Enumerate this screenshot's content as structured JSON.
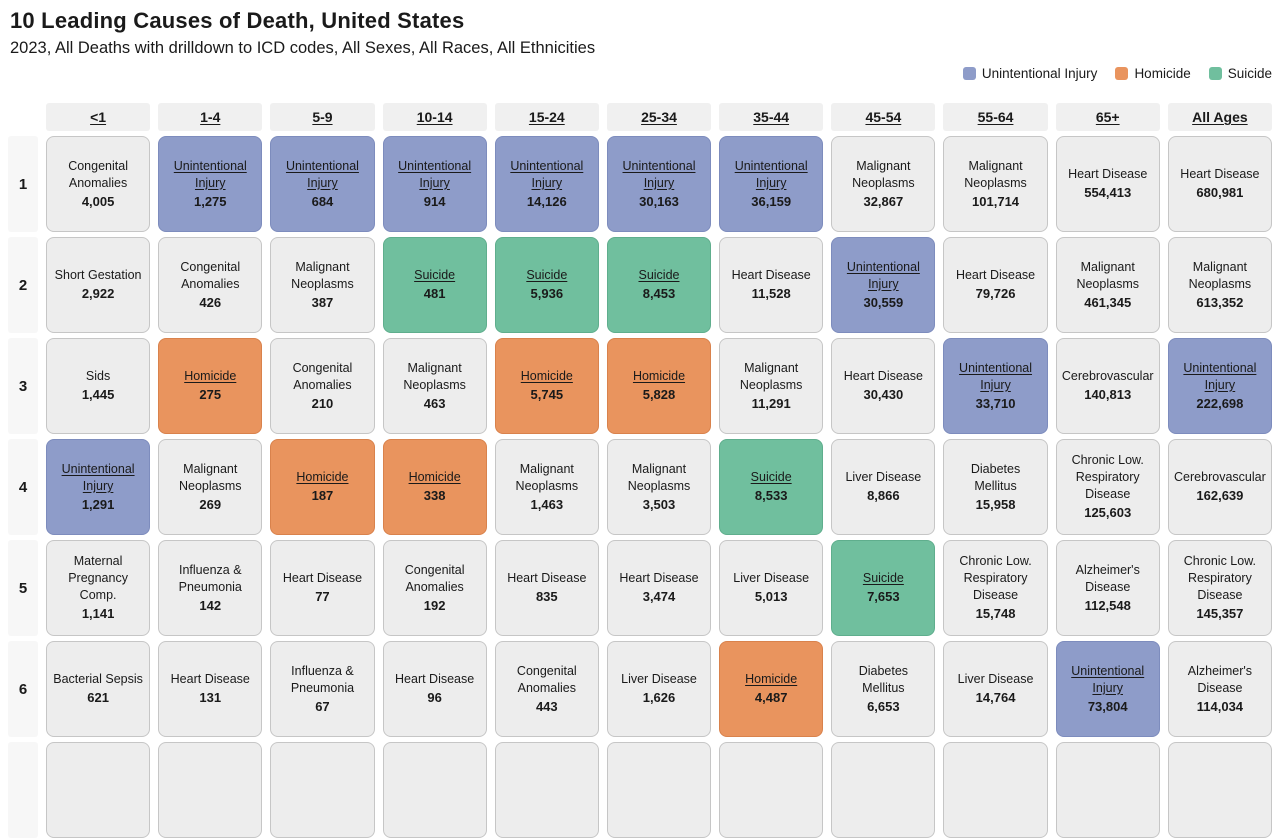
{
  "header": {
    "title": "10 Leading Causes of Death, United States",
    "subtitle": "2023, All Deaths with drilldown to ICD codes, All Sexes, All Races, All Ethnicities"
  },
  "legend": {
    "items": [
      {
        "label": "Unintentional Injury",
        "color": "#8e9cc9"
      },
      {
        "label": "Homicide",
        "color": "#e9945e"
      },
      {
        "label": "Suicide",
        "color": "#70bf9e"
      }
    ]
  },
  "chart_data": {
    "type": "table",
    "title": "10 Leading Causes of Death, United States",
    "subtitle": "2023, All Deaths with drilldown to ICD codes, All Sexes, All Races, All Ethnicities",
    "legend_position": "top-right",
    "category_colors": {
      "unintentional-injury": "#8e9cc9",
      "homicide": "#e9945e",
      "suicide": "#70bf9e",
      "none": "#ededed"
    },
    "columns": [
      "<1",
      "1-4",
      "5-9",
      "10-14",
      "15-24",
      "25-34",
      "35-44",
      "45-54",
      "55-64",
      "65+",
      "All Ages"
    ],
    "ranks": [
      "1",
      "2",
      "3",
      "4",
      "5",
      "6"
    ],
    "partial_row_visible": true,
    "rows": [
      {
        "rank": "1",
        "cells": [
          {
            "cause": "Congenital Anomalies",
            "deaths": "4,005",
            "category": "none"
          },
          {
            "cause": "Unintentional Injury",
            "deaths": "1,275",
            "category": "unintentional-injury"
          },
          {
            "cause": "Unintentional Injury",
            "deaths": "684",
            "category": "unintentional-injury"
          },
          {
            "cause": "Unintentional Injury",
            "deaths": "914",
            "category": "unintentional-injury"
          },
          {
            "cause": "Unintentional Injury",
            "deaths": "14,126",
            "category": "unintentional-injury"
          },
          {
            "cause": "Unintentional Injury",
            "deaths": "30,163",
            "category": "unintentional-injury"
          },
          {
            "cause": "Unintentional Injury",
            "deaths": "36,159",
            "category": "unintentional-injury"
          },
          {
            "cause": "Malignant Neoplasms",
            "deaths": "32,867",
            "category": "none"
          },
          {
            "cause": "Malignant Neoplasms",
            "deaths": "101,714",
            "category": "none"
          },
          {
            "cause": "Heart Disease",
            "deaths": "554,413",
            "category": "none"
          },
          {
            "cause": "Heart Disease",
            "deaths": "680,981",
            "category": "none"
          }
        ]
      },
      {
        "rank": "2",
        "cells": [
          {
            "cause": "Short Gestation",
            "deaths": "2,922",
            "category": "none"
          },
          {
            "cause": "Congenital Anomalies",
            "deaths": "426",
            "category": "none"
          },
          {
            "cause": "Malignant Neoplasms",
            "deaths": "387",
            "category": "none"
          },
          {
            "cause": "Suicide",
            "deaths": "481",
            "category": "suicide"
          },
          {
            "cause": "Suicide",
            "deaths": "5,936",
            "category": "suicide"
          },
          {
            "cause": "Suicide",
            "deaths": "8,453",
            "category": "suicide"
          },
          {
            "cause": "Heart Disease",
            "deaths": "11,528",
            "category": "none"
          },
          {
            "cause": "Unintentional Injury",
            "deaths": "30,559",
            "category": "unintentional-injury"
          },
          {
            "cause": "Heart Disease",
            "deaths": "79,726",
            "category": "none"
          },
          {
            "cause": "Malignant Neoplasms",
            "deaths": "461,345",
            "category": "none"
          },
          {
            "cause": "Malignant Neoplasms",
            "deaths": "613,352",
            "category": "none"
          }
        ]
      },
      {
        "rank": "3",
        "cells": [
          {
            "cause": "Sids",
            "deaths": "1,445",
            "category": "none"
          },
          {
            "cause": "Homicide",
            "deaths": "275",
            "category": "homicide"
          },
          {
            "cause": "Congenital Anomalies",
            "deaths": "210",
            "category": "none"
          },
          {
            "cause": "Malignant Neoplasms",
            "deaths": "463",
            "category": "none"
          },
          {
            "cause": "Homicide",
            "deaths": "5,745",
            "category": "homicide"
          },
          {
            "cause": "Homicide",
            "deaths": "5,828",
            "category": "homicide"
          },
          {
            "cause": "Malignant Neoplasms",
            "deaths": "11,291",
            "category": "none"
          },
          {
            "cause": "Heart Disease",
            "deaths": "30,430",
            "category": "none"
          },
          {
            "cause": "Unintentional Injury",
            "deaths": "33,710",
            "category": "unintentional-injury"
          },
          {
            "cause": "Cerebrovascular",
            "deaths": "140,813",
            "category": "none"
          },
          {
            "cause": "Unintentional Injury",
            "deaths": "222,698",
            "category": "unintentional-injury"
          }
        ]
      },
      {
        "rank": "4",
        "cells": [
          {
            "cause": "Unintentional Injury",
            "deaths": "1,291",
            "category": "unintentional-injury"
          },
          {
            "cause": "Malignant Neoplasms",
            "deaths": "269",
            "category": "none"
          },
          {
            "cause": "Homicide",
            "deaths": "187",
            "category": "homicide"
          },
          {
            "cause": "Homicide",
            "deaths": "338",
            "category": "homicide"
          },
          {
            "cause": "Malignant Neoplasms",
            "deaths": "1,463",
            "category": "none"
          },
          {
            "cause": "Malignant Neoplasms",
            "deaths": "3,503",
            "category": "none"
          },
          {
            "cause": "Suicide",
            "deaths": "8,533",
            "category": "suicide"
          },
          {
            "cause": "Liver Disease",
            "deaths": "8,866",
            "category": "none"
          },
          {
            "cause": "Diabetes Mellitus",
            "deaths": "15,958",
            "category": "none"
          },
          {
            "cause": "Chronic Low. Respiratory Disease",
            "deaths": "125,603",
            "category": "none"
          },
          {
            "cause": "Cerebrovascular",
            "deaths": "162,639",
            "category": "none"
          }
        ]
      },
      {
        "rank": "5",
        "cells": [
          {
            "cause": "Maternal Pregnancy Comp.",
            "deaths": "1,141",
            "category": "none"
          },
          {
            "cause": "Influenza & Pneumonia",
            "deaths": "142",
            "category": "none"
          },
          {
            "cause": "Heart Disease",
            "deaths": "77",
            "category": "none"
          },
          {
            "cause": "Congenital Anomalies",
            "deaths": "192",
            "category": "none"
          },
          {
            "cause": "Heart Disease",
            "deaths": "835",
            "category": "none"
          },
          {
            "cause": "Heart Disease",
            "deaths": "3,474",
            "category": "none"
          },
          {
            "cause": "Liver Disease",
            "deaths": "5,013",
            "category": "none"
          },
          {
            "cause": "Suicide",
            "deaths": "7,653",
            "category": "suicide"
          },
          {
            "cause": "Chronic Low. Respiratory Disease",
            "deaths": "15,748",
            "category": "none"
          },
          {
            "cause": "Alzheimer's Disease",
            "deaths": "112,548",
            "category": "none"
          },
          {
            "cause": "Chronic Low. Respiratory Disease",
            "deaths": "145,357",
            "category": "none"
          }
        ]
      },
      {
        "rank": "6",
        "cells": [
          {
            "cause": "Bacterial Sepsis",
            "deaths": "621",
            "category": "none"
          },
          {
            "cause": "Heart Disease",
            "deaths": "131",
            "category": "none"
          },
          {
            "cause": "Influenza & Pneumonia",
            "deaths": "67",
            "category": "none"
          },
          {
            "cause": "Heart Disease",
            "deaths": "96",
            "category": "none"
          },
          {
            "cause": "Congenital Anomalies",
            "deaths": "443",
            "category": "none"
          },
          {
            "cause": "Liver Disease",
            "deaths": "1,626",
            "category": "none"
          },
          {
            "cause": "Homicide",
            "deaths": "4,487",
            "category": "homicide"
          },
          {
            "cause": "Diabetes Mellitus",
            "deaths": "6,653",
            "category": "none"
          },
          {
            "cause": "Liver Disease",
            "deaths": "14,764",
            "category": "none"
          },
          {
            "cause": "Unintentional Injury",
            "deaths": "73,804",
            "category": "unintentional-injury"
          },
          {
            "cause": "Alzheimer's Disease",
            "deaths": "114,034",
            "category": "none"
          }
        ]
      }
    ]
  }
}
